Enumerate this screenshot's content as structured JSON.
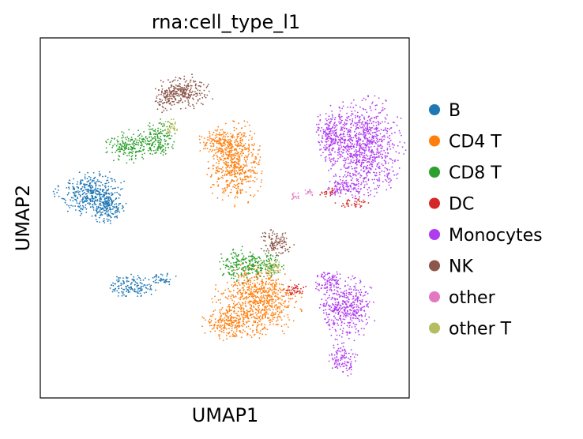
{
  "chart_data": {
    "type": "scatter",
    "title": "rna:cell_type_l1",
    "xlabel": "UMAP1",
    "ylabel": "UMAP2",
    "xlim": [
      0,
      100
    ],
    "ylim": [
      0,
      100
    ],
    "grid": false,
    "ticks": false,
    "legend_position": "right",
    "series": [
      {
        "name": "B",
        "color": "#1f77b4",
        "regions": [
          {
            "cx": 14,
            "cy": 57,
            "rx": 10,
            "ry": 7
          },
          {
            "cx": 18,
            "cy": 53,
            "rx": 6,
            "ry": 5
          },
          {
            "cx": 25,
            "cy": 31,
            "rx": 7,
            "ry": 3.5
          },
          {
            "cx": 33,
            "cy": 33,
            "rx": 4,
            "ry": 1.8
          }
        ]
      },
      {
        "name": "CD4 T",
        "color": "#ff7f0e",
        "regions": [
          {
            "cx": 53,
            "cy": 65,
            "rx": 8,
            "ry": 12
          },
          {
            "cx": 49,
            "cy": 71,
            "rx": 7,
            "ry": 4
          },
          {
            "cx": 59,
            "cy": 27,
            "rx": 12,
            "ry": 11
          },
          {
            "cx": 51,
            "cy": 21,
            "rx": 8,
            "ry": 5
          }
        ]
      },
      {
        "name": "CD8 T",
        "color": "#2ca02c",
        "regions": [
          {
            "cx": 24,
            "cy": 70,
            "rx": 7,
            "ry": 5
          },
          {
            "cx": 32,
            "cy": 72,
            "rx": 5,
            "ry": 6
          },
          {
            "cx": 54,
            "cy": 37,
            "rx": 6,
            "ry": 5
          },
          {
            "cx": 61,
            "cy": 37,
            "rx": 5,
            "ry": 4
          }
        ]
      },
      {
        "name": "DC",
        "color": "#d62728",
        "regions": [
          {
            "cx": 78,
            "cy": 57,
            "rx": 3,
            "ry": 1.4
          },
          {
            "cx": 85,
            "cy": 54,
            "rx": 5,
            "ry": 1.4
          },
          {
            "cx": 69,
            "cy": 30,
            "rx": 4,
            "ry": 2
          }
        ]
      },
      {
        "name": "Monocytes",
        "color": "#b03cf0",
        "regions": [
          {
            "cx": 88,
            "cy": 70,
            "rx": 11,
            "ry": 14
          },
          {
            "cx": 79,
            "cy": 73,
            "rx": 5,
            "ry": 8
          },
          {
            "cx": 83,
            "cy": 58,
            "rx": 6,
            "ry": 3
          },
          {
            "cx": 83,
            "cy": 25,
            "rx": 8,
            "ry": 9
          },
          {
            "cx": 78,
            "cy": 32,
            "rx": 4,
            "ry": 4
          },
          {
            "cx": 82,
            "cy": 11,
            "rx": 4,
            "ry": 5
          }
        ]
      },
      {
        "name": "NK",
        "color": "#8c564b",
        "regions": [
          {
            "cx": 39,
            "cy": 85,
            "rx": 8,
            "ry": 5
          },
          {
            "cx": 34,
            "cy": 83,
            "rx": 4,
            "ry": 4
          },
          {
            "cx": 64,
            "cy": 43,
            "rx": 5,
            "ry": 4
          }
        ]
      },
      {
        "name": "other",
        "color": "#e377c2",
        "regions": [
          {
            "cx": 69,
            "cy": 56,
            "rx": 2,
            "ry": 1.5
          },
          {
            "cx": 73,
            "cy": 57,
            "rx": 2,
            "ry": 1.2
          }
        ]
      },
      {
        "name": "other T",
        "color": "#b5bd61",
        "regions": [
          {
            "cx": 35,
            "cy": 75,
            "rx": 3,
            "ry": 2.5
          },
          {
            "cx": 63,
            "cy": 36,
            "rx": 3,
            "ry": 2.5
          }
        ]
      }
    ]
  }
}
